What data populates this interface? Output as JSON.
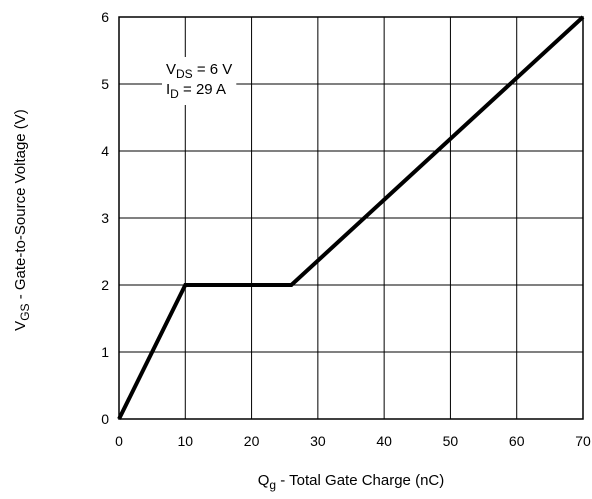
{
  "chart_data": {
    "type": "line",
    "title": "",
    "xlabel": {
      "main": "Q",
      "sub": "g",
      "rest": " - Total Gate Charge (nC)"
    },
    "ylabel": {
      "main": "V",
      "sub": "GS",
      "rest": " - Gate-to-Source Voltage (V)"
    },
    "xlim": [
      0,
      70
    ],
    "ylim": [
      0,
      6
    ],
    "xticks": [
      0,
      10,
      20,
      30,
      40,
      50,
      60,
      70
    ],
    "yticks": [
      0,
      1,
      2,
      3,
      4,
      5,
      6
    ],
    "grid": true,
    "series": [
      {
        "x": [
          0,
          10,
          26,
          70
        ],
        "y": [
          0,
          2,
          2,
          6
        ]
      }
    ],
    "annotations": [
      {
        "main": "V",
        "sub": "DS",
        "rest": " = 6 V"
      },
      {
        "main": "I",
        "sub": "D",
        "rest": " = 29 A"
      }
    ]
  }
}
